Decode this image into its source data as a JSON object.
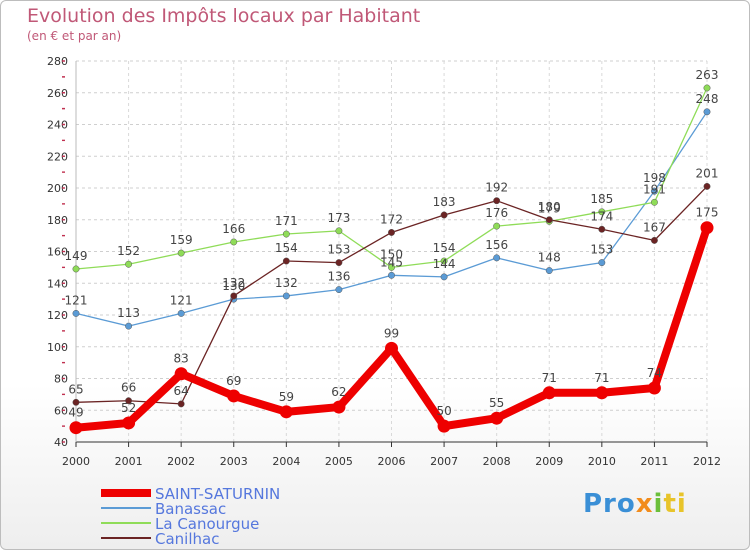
{
  "chart_data": {
    "type": "line",
    "title": "Evolution des Impôts locaux par Habitant",
    "subtitle": "(en € et par an)",
    "xlabel": "",
    "ylabel": "",
    "x": [
      "2000",
      "2001",
      "2002",
      "2003",
      "2004",
      "2005",
      "2006",
      "2007",
      "2008",
      "2009",
      "2010",
      "2011",
      "2012"
    ],
    "ylim": [
      40,
      280
    ],
    "yticks": [
      40,
      60,
      80,
      100,
      120,
      140,
      160,
      180,
      200,
      220,
      240,
      260,
      280
    ],
    "grid": true,
    "legend_position": "bottom-left",
    "series": [
      {
        "name": "Banassac",
        "color": "#5b9bd5",
        "values": [
          121,
          113,
          121,
          130,
          132,
          136,
          145,
          144,
          156,
          148,
          153,
          198,
          248
        ]
      },
      {
        "name": "La Canourgue",
        "color": "#8fdc58",
        "values": [
          149,
          152,
          159,
          166,
          171,
          173,
          150,
          154,
          176,
          179,
          185,
          191,
          263
        ]
      },
      {
        "name": "Canilhac",
        "color": "#6b2424",
        "values": [
          65,
          66,
          64,
          132,
          154,
          153,
          172,
          183,
          192,
          180,
          174,
          167,
          201
        ]
      },
      {
        "name": "SAINT-SATURNIN",
        "color": "#ee0000",
        "values": [
          49,
          52,
          83,
          69,
          59,
          62,
          99,
          50,
          55,
          71,
          71,
          74,
          175
        ]
      }
    ]
  },
  "logo": {
    "p1": "Pro",
    "p2": "x",
    "p3": "i",
    "p4": "ti"
  }
}
